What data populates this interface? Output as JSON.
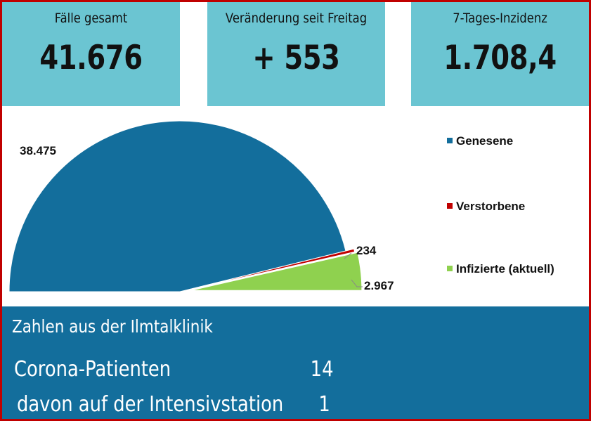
{
  "kpis": [
    {
      "label": "Fälle gesamt",
      "value": "41.676"
    },
    {
      "label": "Veränderung seit Freitag",
      "value": "+ 553"
    },
    {
      "label": "7-Tages-Inzidenz",
      "value": "1.708,4"
    }
  ],
  "chart_data": {
    "type": "pie",
    "variant": "half-pie, exploded slices",
    "categories": [
      "Genesene",
      "Verstorbene",
      "Infizierte (aktuell)"
    ],
    "values": [
      38475,
      234,
      2967
    ],
    "value_labels": [
      "38.475",
      "234",
      "2.967"
    ],
    "colors": [
      "#136e9c",
      "#c00000",
      "#8fd14f"
    ],
    "legend_position": "right"
  },
  "clinic": {
    "title": "Zahlen aus der Ilmtalklinik",
    "rows": [
      {
        "label": "Corona-Patienten",
        "value": "14"
      },
      {
        "label": "davon auf der Intensivstation",
        "value": "1"
      }
    ]
  },
  "colors": {
    "kpi_bg": "#6bc5d2",
    "clinic_bg": "#136e9c",
    "border": "#c00000"
  }
}
